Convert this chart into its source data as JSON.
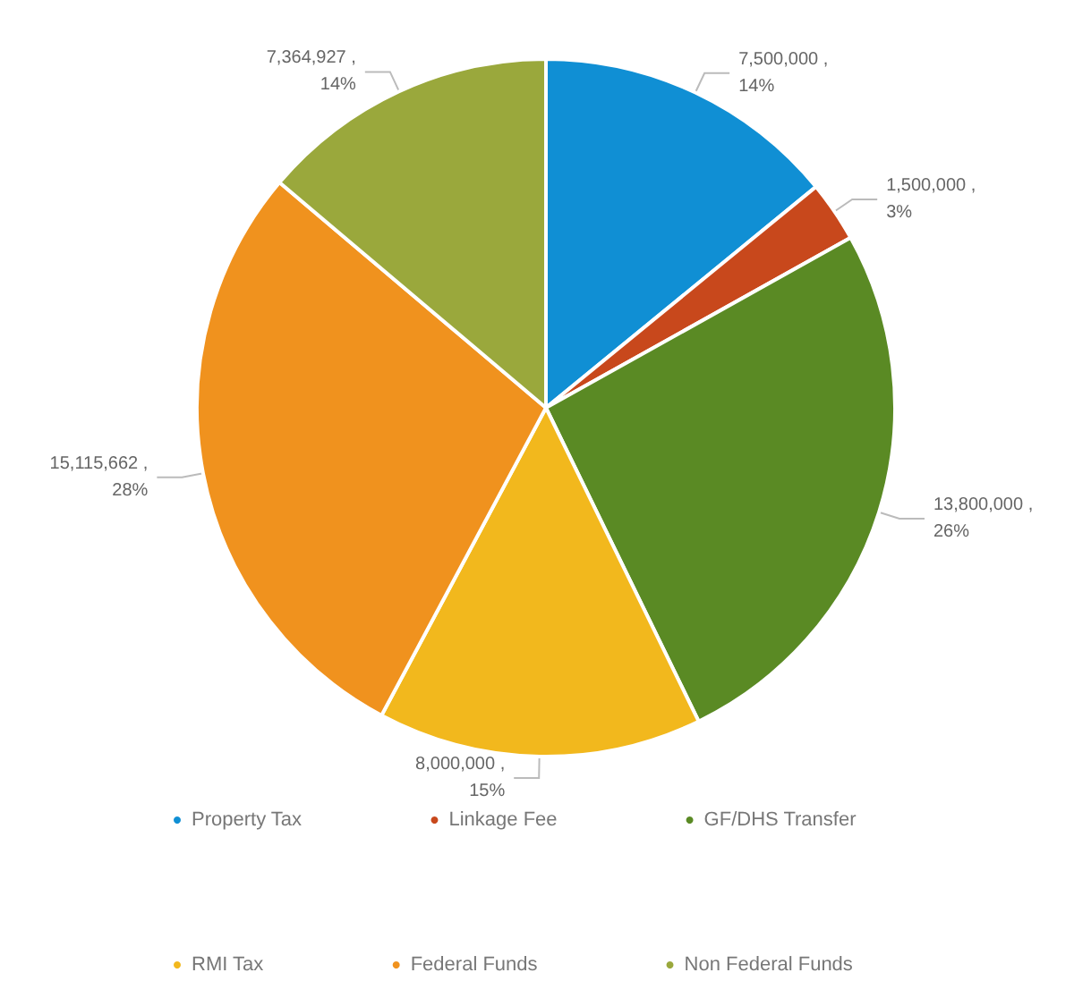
{
  "chart_data": {
    "type": "pie",
    "categories": [
      "Property Tax",
      "Linkage Fee",
      "GF/DHS Transfer",
      "RMI Tax",
      "Federal Funds",
      "Non Federal Funds"
    ],
    "values": [
      7500000,
      1500000,
      13800000,
      8000000,
      15115662,
      7364927
    ],
    "colors": [
      "#108fd4",
      "#c8481c",
      "#5a8a24",
      "#f2b81d",
      "#f0921e",
      "#9aa83c"
    ],
    "value_labels": [
      "7,500,000 ,\n14%",
      "1,500,000 ,\n3%",
      "13,800,000 ,\n26%",
      "8,000,000 ,\n15%",
      "15,115,662 ,\n28%",
      "7,364,927 ,\n14%"
    ],
    "legend": "bottom"
  }
}
